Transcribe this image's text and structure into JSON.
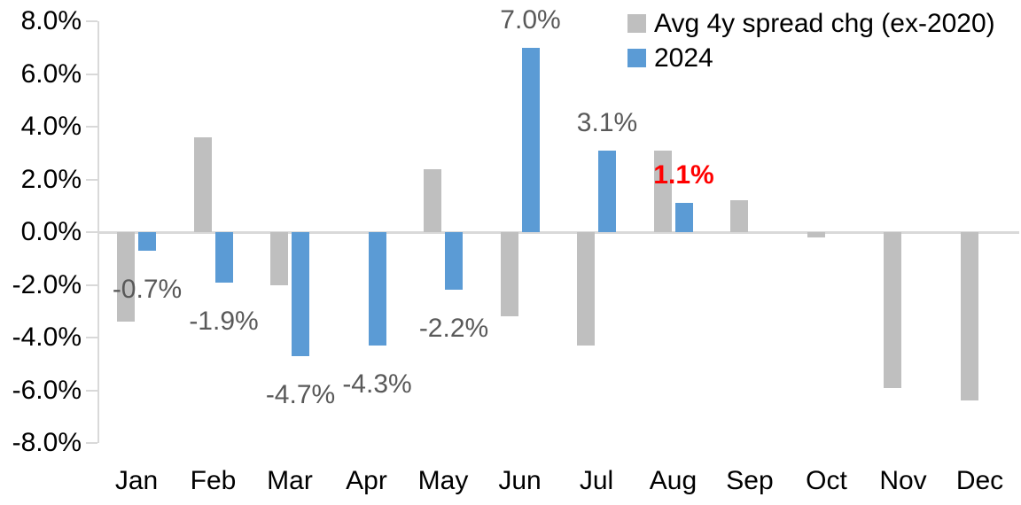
{
  "chart_data": {
    "type": "bar",
    "title": "",
    "xlabel": "",
    "ylabel": "",
    "categories": [
      "Jan",
      "Feb",
      "Mar",
      "Apr",
      "May",
      "Jun",
      "Jul",
      "Aug",
      "Sep",
      "Oct",
      "Nov",
      "Dec"
    ],
    "series": [
      {
        "name": "Avg 4y spread chg (ex-2020)",
        "color": "#BFBFBF",
        "values": [
          -3.4,
          3.6,
          -2.0,
          0.0,
          2.4,
          -3.2,
          -4.3,
          3.1,
          1.2,
          -0.2,
          -5.9,
          -6.4
        ]
      },
      {
        "name": "2024",
        "color": "#5B9BD5",
        "values": [
          -0.7,
          -1.9,
          -4.7,
          -4.3,
          -2.2,
          7.0,
          3.1,
          1.1,
          null,
          null,
          null,
          null
        ]
      }
    ],
    "data_labels": [
      {
        "month_index": 0,
        "text": "-0.7%",
        "color": "#595959",
        "bold": false
      },
      {
        "month_index": 1,
        "text": "-1.9%",
        "color": "#595959",
        "bold": false
      },
      {
        "month_index": 2,
        "text": "-4.7%",
        "color": "#595959",
        "bold": false
      },
      {
        "month_index": 3,
        "text": "-4.3%",
        "color": "#595959",
        "bold": false
      },
      {
        "month_index": 4,
        "text": "-2.2%",
        "color": "#595959",
        "bold": false
      },
      {
        "month_index": 5,
        "text": "7.0%",
        "color": "#595959",
        "bold": false
      },
      {
        "month_index": 6,
        "text": "3.1%",
        "color": "#595959",
        "bold": false
      },
      {
        "month_index": 7,
        "text": "1.1%",
        "color": "#FF0000",
        "bold": true
      }
    ],
    "y_axis": {
      "min": -8,
      "max": 8,
      "step": 2,
      "tick_labels": [
        "8.0%",
        "6.0%",
        "4.0%",
        "2.0%",
        "0.0%",
        "-2.0%",
        "-4.0%",
        "-6.0%",
        "-8.0%"
      ]
    },
    "legend": {
      "position": "top-right",
      "entries": [
        "Avg 4y spread chg (ex-2020)",
        "2024"
      ]
    },
    "grid": false,
    "axis_color": "#D9D9D9",
    "label_color": "#595959",
    "highlight_color": "#FF0000"
  }
}
